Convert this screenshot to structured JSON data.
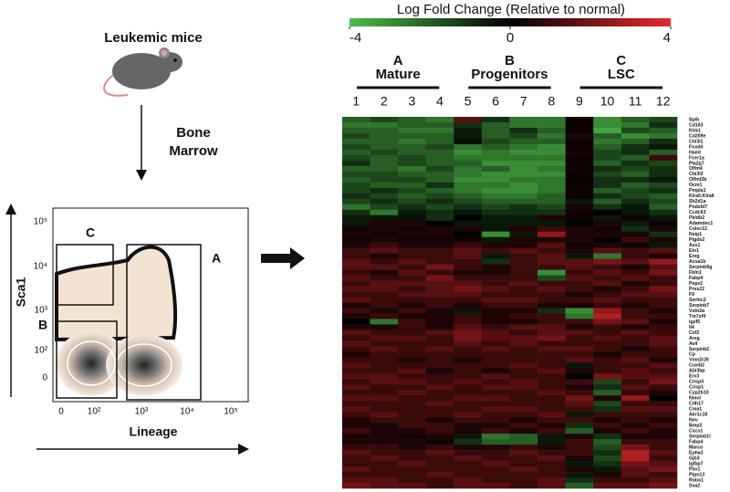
{
  "left_panel": {
    "title": "Leukemic mice",
    "step_lines": [
      "Bone",
      "Marrow"
    ],
    "flow": {
      "y_label": "Sca1",
      "x_label": "Lineage",
      "y_ticks": [
        "10⁵",
        "10⁴",
        "10³",
        "10²",
        "0"
      ],
      "x_ticks": [
        "0",
        "10²",
        "10³",
        "10⁴",
        "10⁵"
      ],
      "gates": [
        "A",
        "B",
        "C"
      ]
    }
  },
  "chart_data": {
    "type": "heatmap",
    "legend_title": "Log Fold Change (Relative to normal)",
    "zlim": [
      -4,
      4
    ],
    "zticks": [
      -4,
      0,
      4
    ],
    "colorscale": [
      "#4cbc48",
      "#000000",
      "#e8282d"
    ],
    "groups": [
      {
        "letter": "A",
        "name": "Mature"
      },
      {
        "letter": "B",
        "name": "Progenitors"
      },
      {
        "letter": "C",
        "name": "LSC"
      }
    ],
    "categories": [
      "1",
      "2",
      "3",
      "4",
      "5",
      "6",
      "7",
      "8",
      "9",
      "10",
      "11",
      "12"
    ],
    "rows": [
      "Spib",
      "Cd163",
      "Klrk1",
      "Cd209e",
      "Chi3l1",
      "Foxd4",
      "Hamt",
      "Fcer1a",
      "Pla2g7",
      "Olfm4",
      "Chi3l3",
      "Olfml2b",
      "Ocm1",
      "Pmpla1",
      "Klra5;Klra6",
      "Sh2d1a",
      "Podxbl7",
      "Ccdc63",
      "Pkldb2",
      "Adamdec1",
      "Colec12",
      "Nsip1",
      "Ptgds2",
      "Ass1",
      "Etv1",
      "Ereg",
      "Acsa1b",
      "Serpinb9g",
      "Fbln1",
      "Fabp4",
      "Pepz2",
      "Prss22",
      "F9",
      "Serinc2",
      "Serpinb7",
      "Vstn2a",
      "Tm7sf4",
      "Igsf5",
      "Il4",
      "Csf2",
      "Areg",
      "Avil",
      "Serpinb2",
      "Cp",
      "Vmn2r26",
      "Cox4i2",
      "Abi3bp",
      "Erv3",
      "Crisp3",
      "Crisp1",
      "Cyp2b10",
      "Nmol",
      "Cdh17",
      "Cma1",
      "Akr1c18",
      "Nov",
      "Bmp2",
      "Cxcs1",
      "Serpinb1l",
      "Fabp4",
      "Marco",
      "Epha3",
      "Gjb3",
      "Igfbp7",
      "Pbx1",
      "Ptpn13",
      "Robo1",
      "Sva2"
    ],
    "z": [
      [
        -2,
        -1.5,
        -2,
        -2.5,
        1.5,
        -1,
        -2.5,
        -2.5,
        0.3,
        -3,
        -2,
        -1.5
      ],
      [
        -2.5,
        -2.5,
        -2,
        -2,
        -1,
        -2,
        -2.5,
        -2.5,
        0.2,
        -3,
        -2.5,
        -1
      ],
      [
        -2,
        -2,
        -2.5,
        -2.5,
        -0.5,
        -2,
        -1,
        -2,
        0.2,
        -3.5,
        -1.5,
        -2
      ],
      [
        -1.5,
        -2,
        -2,
        -2,
        -0.5,
        -2,
        -1.5,
        -2.5,
        0.5,
        -2,
        -3,
        -2.5
      ],
      [
        -2,
        -2,
        -2.5,
        -2,
        -0.3,
        -1.5,
        -2,
        -2,
        0.2,
        -2.5,
        -2,
        -1
      ],
      [
        -1.5,
        -2,
        -2,
        -1.5,
        -2.5,
        -2,
        -2.5,
        -3,
        0.3,
        -2,
        -1,
        -0.5
      ],
      [
        -2,
        -1.5,
        -2,
        -2,
        -3,
        -2.5,
        -3,
        -3,
        0.4,
        -1.5,
        -1,
        -2
      ],
      [
        -1.5,
        -2,
        -1.5,
        -2,
        -2.5,
        -2.5,
        -2.5,
        -2.5,
        0.3,
        -1.5,
        -2,
        1
      ],
      [
        -1,
        -2,
        -1.5,
        -2,
        -2,
        -3,
        -3,
        -3,
        0.2,
        -2,
        -1,
        -1.5
      ],
      [
        -2,
        -2,
        -2.5,
        -1.5,
        -2.5,
        -2,
        -3,
        -2.5,
        0.3,
        -1,
        -1.5,
        -1
      ],
      [
        -1.5,
        -1.5,
        -2,
        -2,
        -2.5,
        -3,
        -3,
        -3,
        0.2,
        -1.5,
        -2,
        -1
      ],
      [
        -2,
        -1.5,
        -1.5,
        -2,
        -3,
        -3,
        -2.5,
        -2.5,
        0.2,
        -1,
        -1,
        -0.5
      ],
      [
        -1.5,
        -2,
        -2,
        -1,
        -2.5,
        -2.5,
        -3,
        -2.5,
        0.3,
        -1,
        -2,
        -1.5
      ],
      [
        -1.5,
        -1,
        -1.5,
        -2,
        -2.5,
        -3,
        -3,
        -2.5,
        0.2,
        -2,
        -1.5,
        -1
      ],
      [
        -1,
        -1.5,
        -2,
        -1.5,
        -2,
        -2.5,
        -2.5,
        -2,
        0.2,
        -1,
        -1.5,
        -2
      ],
      [
        -1.5,
        -1,
        -1.5,
        -1,
        -1.5,
        -2,
        -2,
        -2,
        -0.5,
        -2,
        -1,
        -1.5
      ],
      [
        -2.5,
        -1.5,
        -1,
        -1.5,
        -1,
        -1.5,
        -1,
        -1.5,
        0.5,
        -1,
        -0.5,
        -2
      ],
      [
        -1,
        -2.5,
        -0.5,
        -1,
        -0.5,
        -1,
        -1,
        -1,
        0.3,
        0,
        -0.5,
        -1
      ],
      [
        -0.5,
        -0.5,
        -0.3,
        -1,
        0,
        -0.5,
        -0.5,
        0.5,
        0.3,
        -0.5,
        0.3,
        -0.5
      ],
      [
        -0.5,
        0.5,
        0.5,
        0,
        -0.5,
        -0.5,
        -0.5,
        -0.5,
        0,
        0.5,
        -0.5,
        0.2
      ],
      [
        0.3,
        0.5,
        0.3,
        0.5,
        0.5,
        -0.5,
        0.5,
        1,
        0.5,
        0.3,
        -1,
        0.5
      ],
      [
        0.5,
        0.3,
        0.5,
        0.5,
        0,
        -3,
        -0.5,
        2.5,
        0.5,
        0.5,
        0.5,
        -1
      ],
      [
        0.3,
        0.5,
        0.3,
        0.3,
        0.3,
        -0.5,
        0.5,
        0.5,
        0.5,
        0,
        1,
        0.5
      ],
      [
        0.5,
        1,
        0.5,
        0.5,
        1,
        0.5,
        0.5,
        1.5,
        0.3,
        0.5,
        0.3,
        -0.5
      ],
      [
        1,
        1.5,
        1,
        1,
        1.5,
        1,
        1.5,
        1,
        0.5,
        1.5,
        1,
        1.5
      ],
      [
        1,
        0.5,
        1,
        1,
        1.5,
        -0.5,
        1,
        1.5,
        -0.5,
        -2.5,
        1,
        0.5
      ],
      [
        1.5,
        1,
        1.5,
        1,
        1,
        -1,
        1,
        1.5,
        1.5,
        2,
        1.5,
        2.5
      ],
      [
        1.5,
        1.5,
        1,
        2,
        1,
        0.5,
        1,
        1,
        1.5,
        1,
        0.5,
        1.5
      ],
      [
        1,
        0.5,
        1.5,
        1,
        0.5,
        0.5,
        1,
        -3,
        1,
        1.5,
        1,
        2
      ],
      [
        1.5,
        1,
        1,
        2,
        1,
        1,
        1,
        -1.5,
        1.5,
        1,
        1.5,
        1
      ],
      [
        1,
        1.5,
        1.5,
        1.5,
        1.5,
        1,
        1.5,
        1,
        1,
        1.5,
        0.5,
        1
      ],
      [
        1.5,
        1.5,
        1,
        1.5,
        2,
        1.5,
        1,
        1.5,
        1,
        0.5,
        1,
        2
      ],
      [
        1,
        1,
        1.5,
        1.5,
        1.5,
        1,
        1,
        1,
        0.5,
        1,
        1.5,
        1.5
      ],
      [
        1.5,
        1,
        1,
        1,
        1,
        1.5,
        1.5,
        1,
        1,
        1.5,
        1,
        1
      ],
      [
        0.5,
        1,
        0.5,
        1,
        0.5,
        1,
        1,
        0.5,
        0.5,
        1,
        0.5,
        1
      ],
      [
        1,
        0.5,
        1,
        0.5,
        -0.5,
        0.5,
        0.5,
        -1,
        -3,
        2.5,
        1,
        0.5
      ],
      [
        0.5,
        1,
        0.5,
        0.5,
        1,
        0.5,
        1,
        1,
        -2.5,
        3,
        1,
        1
      ],
      [
        0,
        -2.5,
        1,
        0.5,
        1,
        0.5,
        0.5,
        1,
        1,
        2,
        1.5,
        0.5
      ],
      [
        0.5,
        0.5,
        1,
        0.5,
        1.5,
        1,
        1.5,
        1.5,
        0.5,
        1,
        0.5,
        1
      ],
      [
        1.5,
        1,
        1,
        1.5,
        2,
        1.5,
        1,
        1.5,
        1.5,
        1,
        1.5,
        1
      ],
      [
        1,
        1.5,
        1.5,
        1,
        2,
        1.5,
        1.5,
        2,
        1,
        1.5,
        1,
        1.5
      ],
      [
        1.5,
        1,
        1,
        1,
        1.5,
        1,
        1.5,
        1,
        1,
        1,
        1,
        1.5
      ],
      [
        1,
        1.5,
        1,
        1.5,
        1,
        1.5,
        1,
        1.5,
        1.5,
        1,
        0.5,
        1
      ],
      [
        0.5,
        1,
        1,
        1,
        1,
        1,
        1,
        1,
        1,
        0.5,
        1,
        1
      ],
      [
        1,
        1,
        0.5,
        1,
        0.5,
        1,
        1,
        1,
        1.5,
        1,
        1.5,
        0.5
      ],
      [
        1.5,
        1,
        1,
        1,
        1,
        1,
        1.5,
        1,
        -0.5,
        1,
        1,
        1.5
      ],
      [
        1,
        1,
        1.5,
        0.5,
        1,
        0.5,
        1,
        1.5,
        0.5,
        1,
        1.5,
        1
      ],
      [
        1.5,
        1.5,
        1,
        1,
        1,
        1.5,
        1,
        1,
        0,
        2,
        1.5,
        1.5
      ],
      [
        1,
        1.5,
        1.5,
        1,
        1.5,
        1,
        1.5,
        1,
        1,
        -1.5,
        1,
        2
      ],
      [
        1.5,
        1,
        1,
        1.5,
        1,
        1.5,
        1.5,
        1,
        0.5,
        -1,
        1.5,
        1
      ],
      [
        1,
        1,
        1.5,
        1,
        1,
        1,
        1,
        1.5,
        1,
        -2,
        1,
        0.5
      ],
      [
        1.5,
        1.5,
        1,
        1,
        1.5,
        1.5,
        1,
        1,
        2,
        0.5,
        2.5,
        0
      ],
      [
        1,
        1,
        1,
        1.5,
        1,
        1,
        1,
        1,
        1.5,
        -1.5,
        1,
        1
      ],
      [
        1.5,
        1,
        1,
        1,
        1,
        1.5,
        1.5,
        1,
        1,
        -1,
        1.5,
        1.5
      ],
      [
        1,
        1.5,
        1,
        1,
        1.5,
        1,
        1,
        1.5,
        -0.5,
        1,
        1,
        1
      ],
      [
        0.5,
        1,
        1,
        0.5,
        1,
        1,
        0.5,
        1,
        1,
        0.5,
        1,
        0.5
      ],
      [
        0.5,
        0.5,
        1,
        1,
        0.5,
        0.5,
        1,
        0.5,
        -1,
        1,
        0.5,
        1
      ],
      [
        1,
        0.5,
        0.5,
        1,
        0.5,
        1,
        0.5,
        1,
        -2,
        0.5,
        1,
        0.5
      ],
      [
        0.5,
        0.5,
        0.3,
        0.5,
        -0.5,
        -2.5,
        -2,
        -0.5,
        0.5,
        -1,
        0.5,
        0.5
      ],
      [
        0.5,
        0.5,
        0.5,
        0.3,
        -1,
        -2,
        -2,
        -0.5,
        1,
        -2,
        1,
        1
      ],
      [
        1,
        1,
        0.5,
        1,
        0.5,
        0.5,
        1,
        0.5,
        1,
        -1.5,
        2,
        1
      ],
      [
        1.5,
        1,
        1,
        1.5,
        1,
        1,
        1.5,
        1,
        1,
        -1,
        3,
        1.5
      ],
      [
        1,
        1.5,
        1,
        1,
        1.5,
        1,
        1,
        1.5,
        0.5,
        -1.5,
        3,
        1
      ],
      [
        1,
        1,
        1.5,
        1,
        1,
        1.5,
        1,
        1,
        -0.5,
        -1,
        2,
        1.5
      ],
      [
        1.5,
        1,
        1,
        1,
        1,
        1,
        1.5,
        1,
        0.5,
        -0.5,
        1.5,
        2
      ],
      [
        1,
        1,
        1,
        1.5,
        1,
        1,
        1,
        1,
        -0.5,
        0.5,
        1.5,
        1
      ],
      [
        1.5,
        1.5,
        1,
        1,
        1.5,
        1,
        1,
        1.5,
        -1,
        1,
        1,
        1.5
      ],
      [
        2,
        1.5,
        1.5,
        1,
        1.5,
        1.5,
        1,
        1.5,
        -2,
        1.5,
        1.5,
        2
      ]
    ]
  }
}
